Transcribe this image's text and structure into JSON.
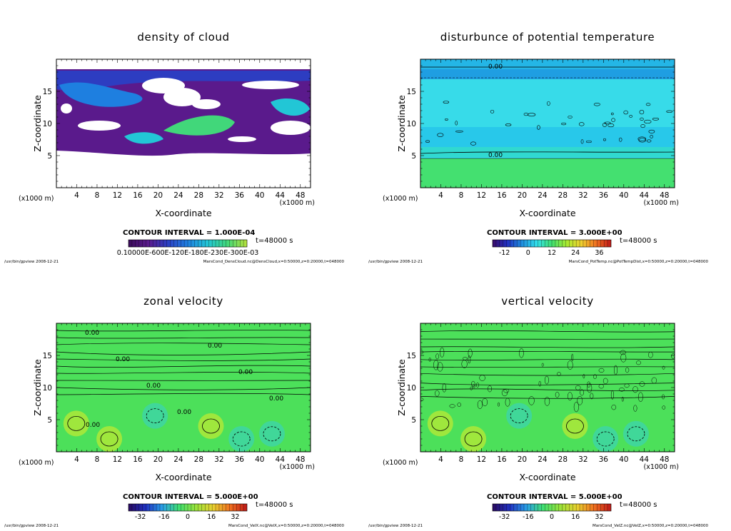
{
  "panels": [
    {
      "title": "density of cloud",
      "xlabel": "X-coordinate",
      "ylabel": "Z-coordinate",
      "xunit": "(x1000 m)",
      "xunit_right": "(x1000 m)",
      "xticks": [
        "4",
        "8",
        "12",
        "16",
        "20",
        "24",
        "28",
        "32",
        "36",
        "40",
        "44",
        "48"
      ],
      "yticks": [
        "5",
        "10",
        "15"
      ],
      "contour_interval": "CONTOUR INTERVAL = 1.000E-04",
      "time": "t=48000 s",
      "colorbar_label": "0.10000E-600E-120E-180E-230E-300E-03",
      "footer_left": "/usr/bin/gpview   2008-12-21",
      "footer_right": "MarsCond_DensCloud.nc@DensCloud,x=0:50000,z=0:20000,t=048000",
      "contour_labels": [],
      "colormap": "cloud"
    },
    {
      "title": "disturbunce of potential temperature",
      "xlabel": "X-coordinate",
      "ylabel": "Z-coordinate",
      "xunit": "(x1000 m)",
      "xunit_right": "(x1000 m)",
      "xticks": [
        "4",
        "8",
        "12",
        "16",
        "20",
        "24",
        "28",
        "32",
        "36",
        "40",
        "44",
        "48"
      ],
      "yticks": [
        "5",
        "10",
        "15"
      ],
      "contour_interval": "CONTOUR INTERVAL = 3.000E+00",
      "time": "t=48000 s",
      "colorbar_ticks": [
        "-12",
        "0",
        "12",
        "24",
        "36"
      ],
      "footer_left": "/usr/bin/gpview   2008-12-21",
      "footer_right": "MarsCond_PotTemp.nc@PotTempDist,x=0:50000,z=0:20000,t=048000",
      "contour_labels": [
        "0.00",
        "0.00"
      ],
      "colormap": "temp"
    },
    {
      "title": "zonal velocity",
      "xlabel": "X-coordinate",
      "ylabel": "Z-coordinate",
      "xunit": "(x1000 m)",
      "xunit_right": "(x1000 m)",
      "xticks": [
        "4",
        "8",
        "12",
        "16",
        "20",
        "24",
        "28",
        "32",
        "36",
        "40",
        "44",
        "48"
      ],
      "yticks": [
        "5",
        "10",
        "15"
      ],
      "contour_interval": "CONTOUR INTERVAL = 5.000E+00",
      "time": "t=48000 s",
      "colorbar_ticks": [
        "-32",
        "-16",
        "0",
        "16",
        "32"
      ],
      "footer_left": "/usr/bin/gpview   2008-12-21",
      "footer_right": "MarsCond_VelX.nc@VelX,x=0:50000,z=0:20000,t=048000",
      "contour_labels": [
        "0.00",
        "0.00",
        "0.00",
        "0.00",
        "0.00",
        "0.00",
        "0.00",
        "0.00"
      ],
      "colormap": "vel"
    },
    {
      "title": "vertical velocity",
      "xlabel": "X-coordinate",
      "ylabel": "Z-coordinate",
      "xunit": "(x1000 m)",
      "xunit_right": "(x1000 m)",
      "xticks": [
        "4",
        "8",
        "12",
        "16",
        "20",
        "24",
        "28",
        "32",
        "36",
        "40",
        "44",
        "48"
      ],
      "yticks": [
        "5",
        "10",
        "15"
      ],
      "contour_interval": "CONTOUR INTERVAL = 5.000E+00",
      "time": "t=48000 s",
      "colorbar_ticks": [
        "-32",
        "-16",
        "0",
        "16",
        "32"
      ],
      "footer_left": "/usr/bin/gpview   2008-12-21",
      "footer_right": "MarsCond_VelZ.nc@VelZ,x=0:50000,z=0:20000,t=048000",
      "contour_labels": [],
      "colormap": "vel"
    }
  ],
  "chart_data": [
    {
      "type": "heatmap",
      "title": "density of cloud",
      "xlabel": "X-coordinate",
      "ylabel": "Z-coordinate",
      "xlim": [
        0,
        50
      ],
      "ylim": [
        0,
        20
      ],
      "contour_interval": 0.0001,
      "time_s": 48000
    },
    {
      "type": "heatmap",
      "title": "disturbunce of potential temperature",
      "xlabel": "X-coordinate",
      "ylabel": "Z-coordinate",
      "xlim": [
        0,
        50
      ],
      "ylim": [
        0,
        20
      ],
      "contour_interval": 3.0,
      "colorbar_range": [
        -12,
        36
      ],
      "time_s": 48000
    },
    {
      "type": "heatmap",
      "title": "zonal velocity",
      "xlabel": "X-coordinate",
      "ylabel": "Z-coordinate",
      "xlim": [
        0,
        50
      ],
      "ylim": [
        0,
        20
      ],
      "contour_interval": 5.0,
      "colorbar_range": [
        -32,
        32
      ],
      "time_s": 48000
    },
    {
      "type": "heatmap",
      "title": "vertical velocity",
      "xlabel": "X-coordinate",
      "ylabel": "Z-coordinate",
      "xlim": [
        0,
        50
      ],
      "ylim": [
        0,
        20
      ],
      "contour_interval": 5.0,
      "colorbar_range": [
        -32,
        32
      ],
      "time_s": 48000
    }
  ]
}
